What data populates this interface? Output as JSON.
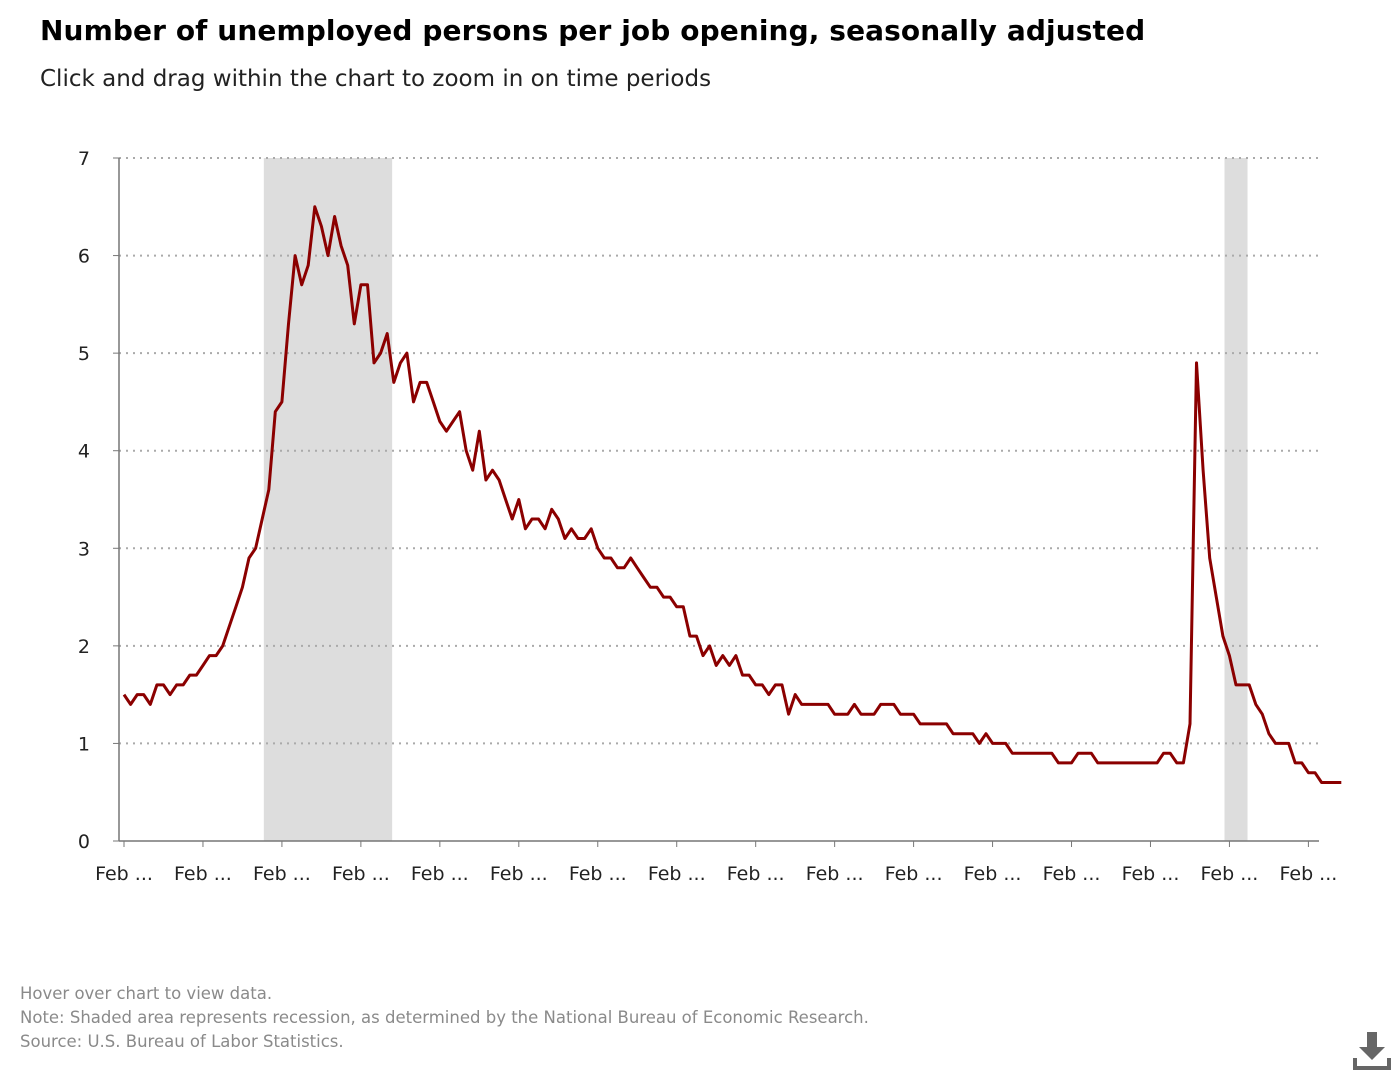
{
  "header": {
    "title": "Number of unemployed persons per job opening, seasonally adjusted",
    "subtitle": "Click and drag within the chart to zoom in on time periods"
  },
  "footer": {
    "hover_note": "Hover over chart to view data.",
    "recession_note": "Note: Shaded area represents recession, as determined by the National Bureau of Economic Research.",
    "source": "Source: U.S. Bureau of Labor Statistics."
  },
  "download_icon": "download-icon",
  "chart_data": {
    "type": "line",
    "title": "Number of unemployed persons per job opening, seasonally adjusted",
    "xlabel": "",
    "ylabel": "",
    "x_tick_labels": [
      "Feb ...",
      "Feb ...",
      "Feb ...",
      "Feb ...",
      "Feb ...",
      "Feb ...",
      "Feb ...",
      "Feb ...",
      "Feb ...",
      "Feb ...",
      "Feb ...",
      "Feb ...",
      "Feb ...",
      "Feb ...",
      "Feb ...",
      "Feb ..."
    ],
    "y_ticks": [
      0,
      1,
      2,
      3,
      4,
      5,
      6,
      7
    ],
    "ylim": [
      0,
      7
    ],
    "grid": "horizontal dotted",
    "recession_shading": [
      {
        "start": "Dec 2007",
        "end": "Jun 2009"
      },
      {
        "start": "Feb 2020",
        "end": "Apr 2020"
      }
    ],
    "colors": {
      "line": "#8b0000",
      "recession": "#dddddd",
      "grid": "#aaaaaa",
      "axis": "#777777"
    },
    "series": [
      {
        "start": "Feb 2006",
        "frequency": "monthly",
        "values": [
          1.5,
          1.4,
          1.5,
          1.5,
          1.4,
          1.6,
          1.6,
          1.5,
          1.6,
          1.6,
          1.7,
          1.7,
          1.8,
          1.9,
          1.9,
          2.0,
          2.2,
          2.4,
          2.6,
          2.9,
          3.0,
          3.3,
          3.6,
          4.4,
          4.5,
          5.3,
          6.0,
          5.7,
          5.9,
          6.5,
          6.3,
          6.0,
          6.4,
          6.1,
          5.9,
          5.3,
          5.7,
          5.7,
          4.9,
          5.0,
          5.2,
          4.7,
          4.9,
          5.0,
          4.5,
          4.7,
          4.7,
          4.5,
          4.3,
          4.2,
          4.3,
          4.4,
          4.0,
          3.8,
          4.2,
          3.7,
          3.8,
          3.7,
          3.5,
          3.3,
          3.5,
          3.2,
          3.3,
          3.3,
          3.2,
          3.4,
          3.3,
          3.1,
          3.2,
          3.1,
          3.1,
          3.2,
          3.0,
          2.9,
          2.9,
          2.8,
          2.8,
          2.9,
          2.8,
          2.7,
          2.6,
          2.6,
          2.5,
          2.5,
          2.4,
          2.4,
          2.1,
          2.1,
          1.9,
          2.0,
          1.8,
          1.9,
          1.8,
          1.9,
          1.7,
          1.7,
          1.6,
          1.6,
          1.5,
          1.6,
          1.6,
          1.3,
          1.5,
          1.4,
          1.4,
          1.4,
          1.4,
          1.4,
          1.3,
          1.3,
          1.3,
          1.4,
          1.3,
          1.3,
          1.3,
          1.4,
          1.4,
          1.4,
          1.3,
          1.3,
          1.3,
          1.2,
          1.2,
          1.2,
          1.2,
          1.2,
          1.1,
          1.1,
          1.1,
          1.1,
          1.0,
          1.1,
          1.0,
          1.0,
          1.0,
          0.9,
          0.9,
          0.9,
          0.9,
          0.9,
          0.9,
          0.9,
          0.8,
          0.8,
          0.8,
          0.9,
          0.9,
          0.9,
          0.8,
          0.8,
          0.8,
          0.8,
          0.8,
          0.8,
          0.8,
          0.8,
          0.8,
          0.8,
          0.9,
          0.9,
          0.8,
          0.8,
          1.2,
          4.9,
          3.8,
          2.9,
          2.5,
          2.1,
          1.9,
          1.6,
          1.6,
          1.6,
          1.4,
          1.3,
          1.1,
          1.0,
          1.0,
          1.0,
          0.8,
          0.8,
          0.7,
          0.7,
          0.6,
          0.6,
          0.6,
          0.6
        ]
      }
    ]
  }
}
